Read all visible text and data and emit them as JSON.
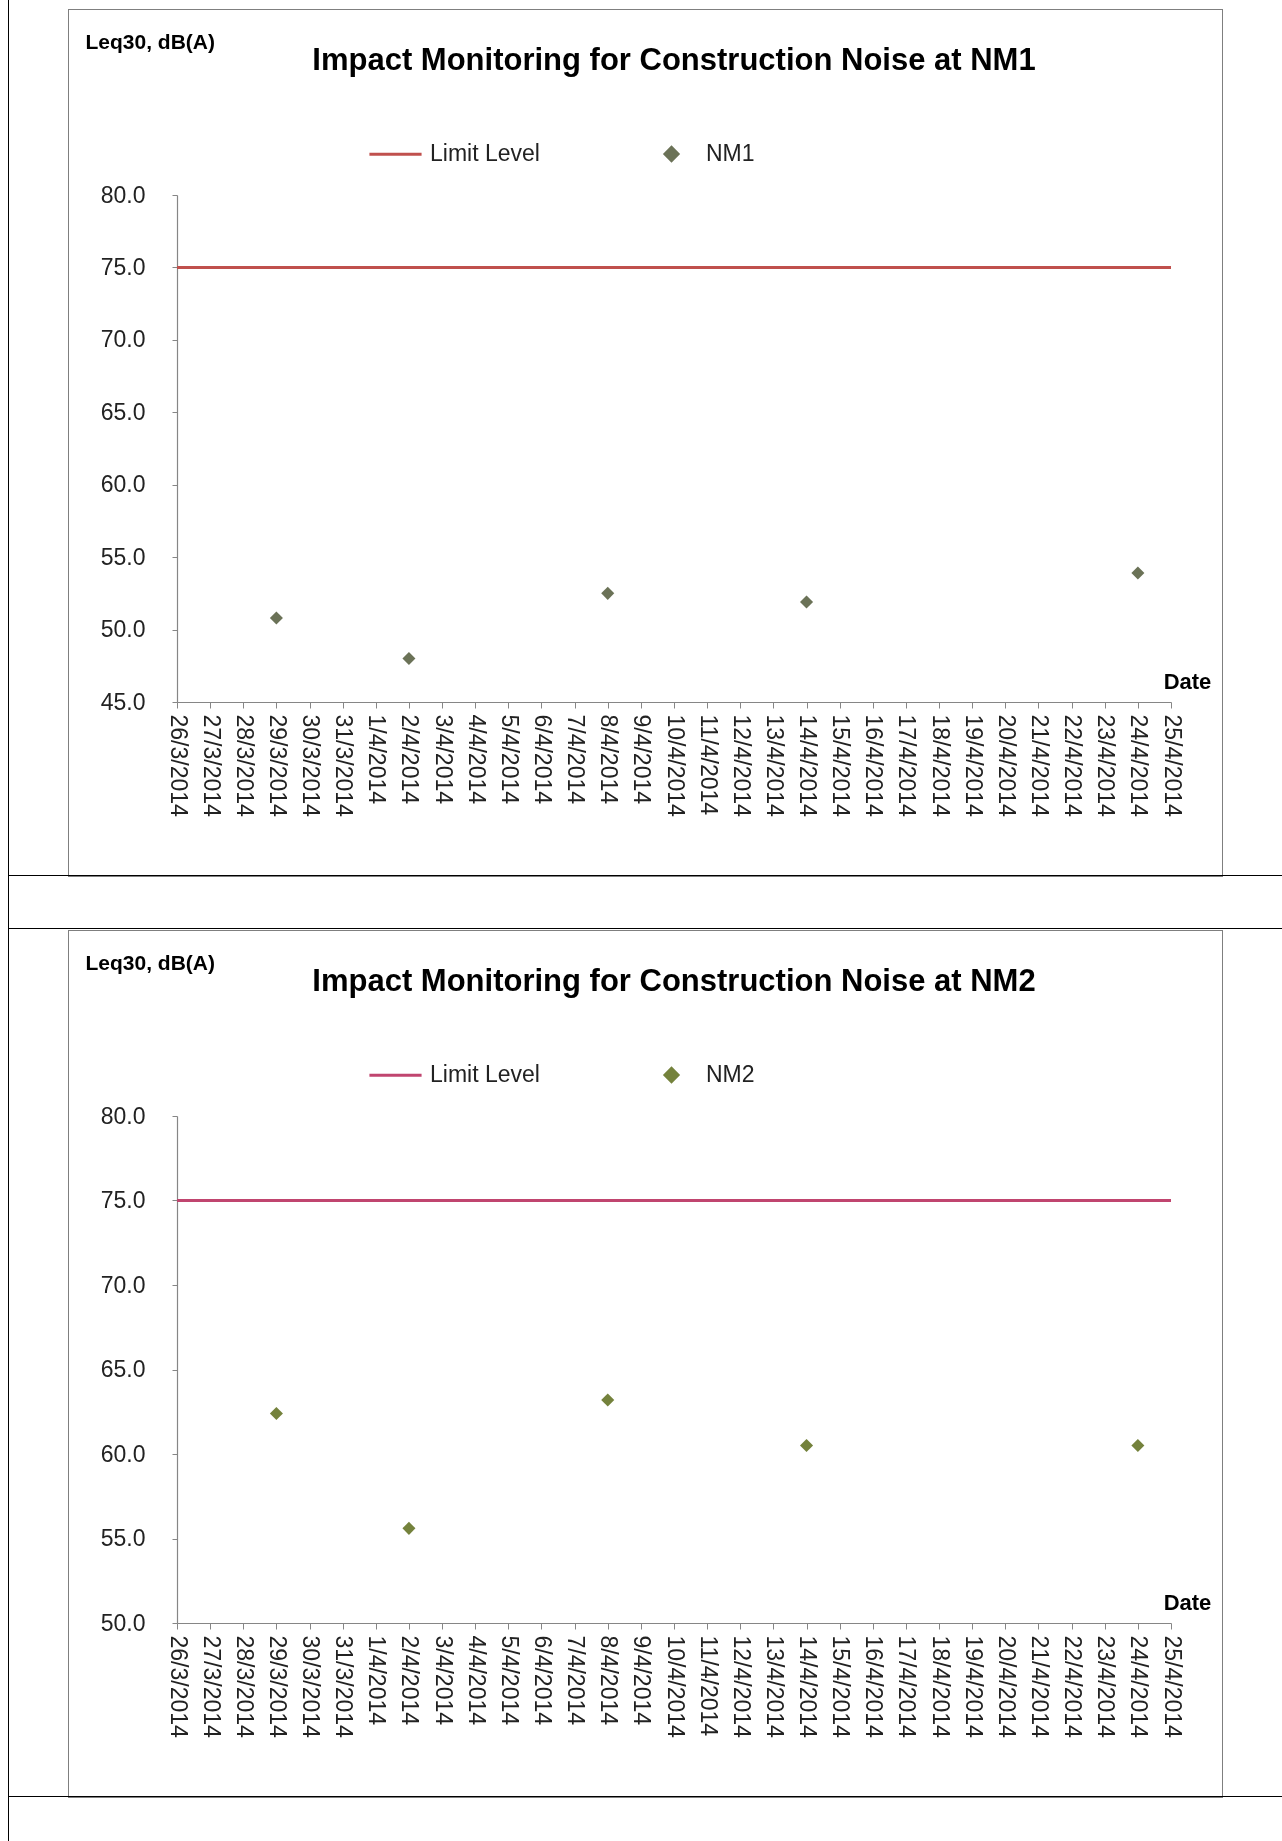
{
  "chart_data": [
    {
      "type": "scatter",
      "title": "Impact Monitoring for Construction Noise at NM1",
      "xlabel": "Date",
      "ylabel": "Leq30, dB(A)",
      "legend": "top",
      "x": [
        "2014-03-29",
        "2014-04-02",
        "2014-04-08",
        "2014-04-14",
        "2014-04-24"
      ],
      "series": [
        {
          "name": "Limit Level",
          "type": "line",
          "color": "#c0504d",
          "x": [
            "2014-03-26",
            "2014-04-25"
          ],
          "values": [
            75,
            75
          ]
        },
        {
          "name": "NM1",
          "color": "#6b7257",
          "marker": "diamond",
          "values": [
            50.8,
            48.0,
            52.5,
            51.9,
            53.9
          ]
        }
      ],
      "xlim": [
        "2014-03-26",
        "2014-04-25"
      ],
      "xticks": [
        {
          "value": "2014-03-26",
          "label": "26/3/2014"
        },
        {
          "value": "2014-03-27",
          "label": "27/3/2014"
        },
        {
          "value": "2014-03-28",
          "label": "28/3/2014"
        },
        {
          "value": "2014-03-29",
          "label": "29/3/2014"
        },
        {
          "value": "2014-03-30",
          "label": "30/3/2014"
        },
        {
          "value": "2014-03-31",
          "label": "31/3/2014"
        },
        {
          "value": "2014-04-01",
          "label": "1/4/2014"
        },
        {
          "value": "2014-04-02",
          "label": "2/4/2014"
        },
        {
          "value": "2014-04-03",
          "label": "3/4/2014"
        },
        {
          "value": "2014-04-04",
          "label": "4/4/2014"
        },
        {
          "value": "2014-04-05",
          "label": "5/4/2014"
        },
        {
          "value": "2014-04-06",
          "label": "6/4/2014"
        },
        {
          "value": "2014-04-07",
          "label": "7/4/2014"
        },
        {
          "value": "2014-04-08",
          "label": "8/4/2014"
        },
        {
          "value": "2014-04-09",
          "label": "9/4/2014"
        },
        {
          "value": "2014-04-10",
          "label": "10/4/2014"
        },
        {
          "value": "2014-04-11",
          "label": "11/4/2014"
        },
        {
          "value": "2014-04-12",
          "label": "12/4/2014"
        },
        {
          "value": "2014-04-13",
          "label": "13/4/2014"
        },
        {
          "value": "2014-04-14",
          "label": "14/4/2014"
        },
        {
          "value": "2014-04-15",
          "label": "15/4/2014"
        },
        {
          "value": "2014-04-16",
          "label": "16/4/2014"
        },
        {
          "value": "2014-04-17",
          "label": "17/4/2014"
        },
        {
          "value": "2014-04-18",
          "label": "18/4/2014"
        },
        {
          "value": "2014-04-19",
          "label": "19/4/2014"
        },
        {
          "value": "2014-04-20",
          "label": "20/4/2014"
        },
        {
          "value": "2014-04-21",
          "label": "21/4/2014"
        },
        {
          "value": "2014-04-22",
          "label": "22/4/2014"
        },
        {
          "value": "2014-04-23",
          "label": "23/4/2014"
        },
        {
          "value": "2014-04-24",
          "label": "24/4/2014"
        },
        {
          "value": "2014-04-25",
          "label": "25/4/2014"
        }
      ],
      "ylim": [
        45,
        80
      ],
      "yticks": [
        {
          "value": 45,
          "label": "45.0"
        },
        {
          "value": 50,
          "label": "50.0"
        },
        {
          "value": 55,
          "label": "55.0"
        },
        {
          "value": 60,
          "label": "60.0"
        },
        {
          "value": 65,
          "label": "65.0"
        },
        {
          "value": 70,
          "label": "70.0"
        },
        {
          "value": 75,
          "label": "75.0"
        },
        {
          "value": 80,
          "label": "80.0"
        }
      ]
    },
    {
      "type": "scatter",
      "title": "Impact Monitoring for Construction Noise at NM2",
      "xlabel": "Date",
      "ylabel": "Leq30, dB(A)",
      "legend": "top",
      "x": [
        "2014-03-29",
        "2014-04-02",
        "2014-04-08",
        "2014-04-14",
        "2014-04-24"
      ],
      "series": [
        {
          "name": "Limit Level",
          "type": "line",
          "color": "#c0456f",
          "x": [
            "2014-03-26",
            "2014-04-25"
          ],
          "values": [
            75,
            75
          ]
        },
        {
          "name": "NM2",
          "color": "#74823c",
          "marker": "diamond",
          "values": [
            62.4,
            55.6,
            63.2,
            60.5,
            60.5
          ]
        }
      ],
      "xlim": [
        "2014-03-26",
        "2014-04-25"
      ],
      "xticks": [
        {
          "value": "2014-03-26",
          "label": "26/3/2014"
        },
        {
          "value": "2014-03-27",
          "label": "27/3/2014"
        },
        {
          "value": "2014-03-28",
          "label": "28/3/2014"
        },
        {
          "value": "2014-03-29",
          "label": "29/3/2014"
        },
        {
          "value": "2014-03-30",
          "label": "30/3/2014"
        },
        {
          "value": "2014-03-31",
          "label": "31/3/2014"
        },
        {
          "value": "2014-04-01",
          "label": "1/4/2014"
        },
        {
          "value": "2014-04-02",
          "label": "2/4/2014"
        },
        {
          "value": "2014-04-03",
          "label": "3/4/2014"
        },
        {
          "value": "2014-04-04",
          "label": "4/4/2014"
        },
        {
          "value": "2014-04-05",
          "label": "5/4/2014"
        },
        {
          "value": "2014-04-06",
          "label": "6/4/2014"
        },
        {
          "value": "2014-04-07",
          "label": "7/4/2014"
        },
        {
          "value": "2014-04-08",
          "label": "8/4/2014"
        },
        {
          "value": "2014-04-09",
          "label": "9/4/2014"
        },
        {
          "value": "2014-04-10",
          "label": "10/4/2014"
        },
        {
          "value": "2014-04-11",
          "label": "11/4/2014"
        },
        {
          "value": "2014-04-12",
          "label": "12/4/2014"
        },
        {
          "value": "2014-04-13",
          "label": "13/4/2014"
        },
        {
          "value": "2014-04-14",
          "label": "14/4/2014"
        },
        {
          "value": "2014-04-15",
          "label": "15/4/2014"
        },
        {
          "value": "2014-04-16",
          "label": "16/4/2014"
        },
        {
          "value": "2014-04-17",
          "label": "17/4/2014"
        },
        {
          "value": "2014-04-18",
          "label": "18/4/2014"
        },
        {
          "value": "2014-04-19",
          "label": "19/4/2014"
        },
        {
          "value": "2014-04-20",
          "label": "20/4/2014"
        },
        {
          "value": "2014-04-21",
          "label": "21/4/2014"
        },
        {
          "value": "2014-04-22",
          "label": "22/4/2014"
        },
        {
          "value": "2014-04-23",
          "label": "23/4/2014"
        },
        {
          "value": "2014-04-24",
          "label": "24/4/2014"
        },
        {
          "value": "2014-04-25",
          "label": "25/4/2014"
        }
      ],
      "ylim": [
        50,
        80
      ],
      "yticks": [
        {
          "value": 50,
          "label": "50.0"
        },
        {
          "value": 55,
          "label": "55.0"
        },
        {
          "value": 60,
          "label": "60.0"
        },
        {
          "value": 65,
          "label": "65.0"
        },
        {
          "value": 70,
          "label": "70.0"
        },
        {
          "value": 75,
          "label": "75.0"
        },
        {
          "value": 80,
          "label": "80.0"
        }
      ]
    }
  ]
}
